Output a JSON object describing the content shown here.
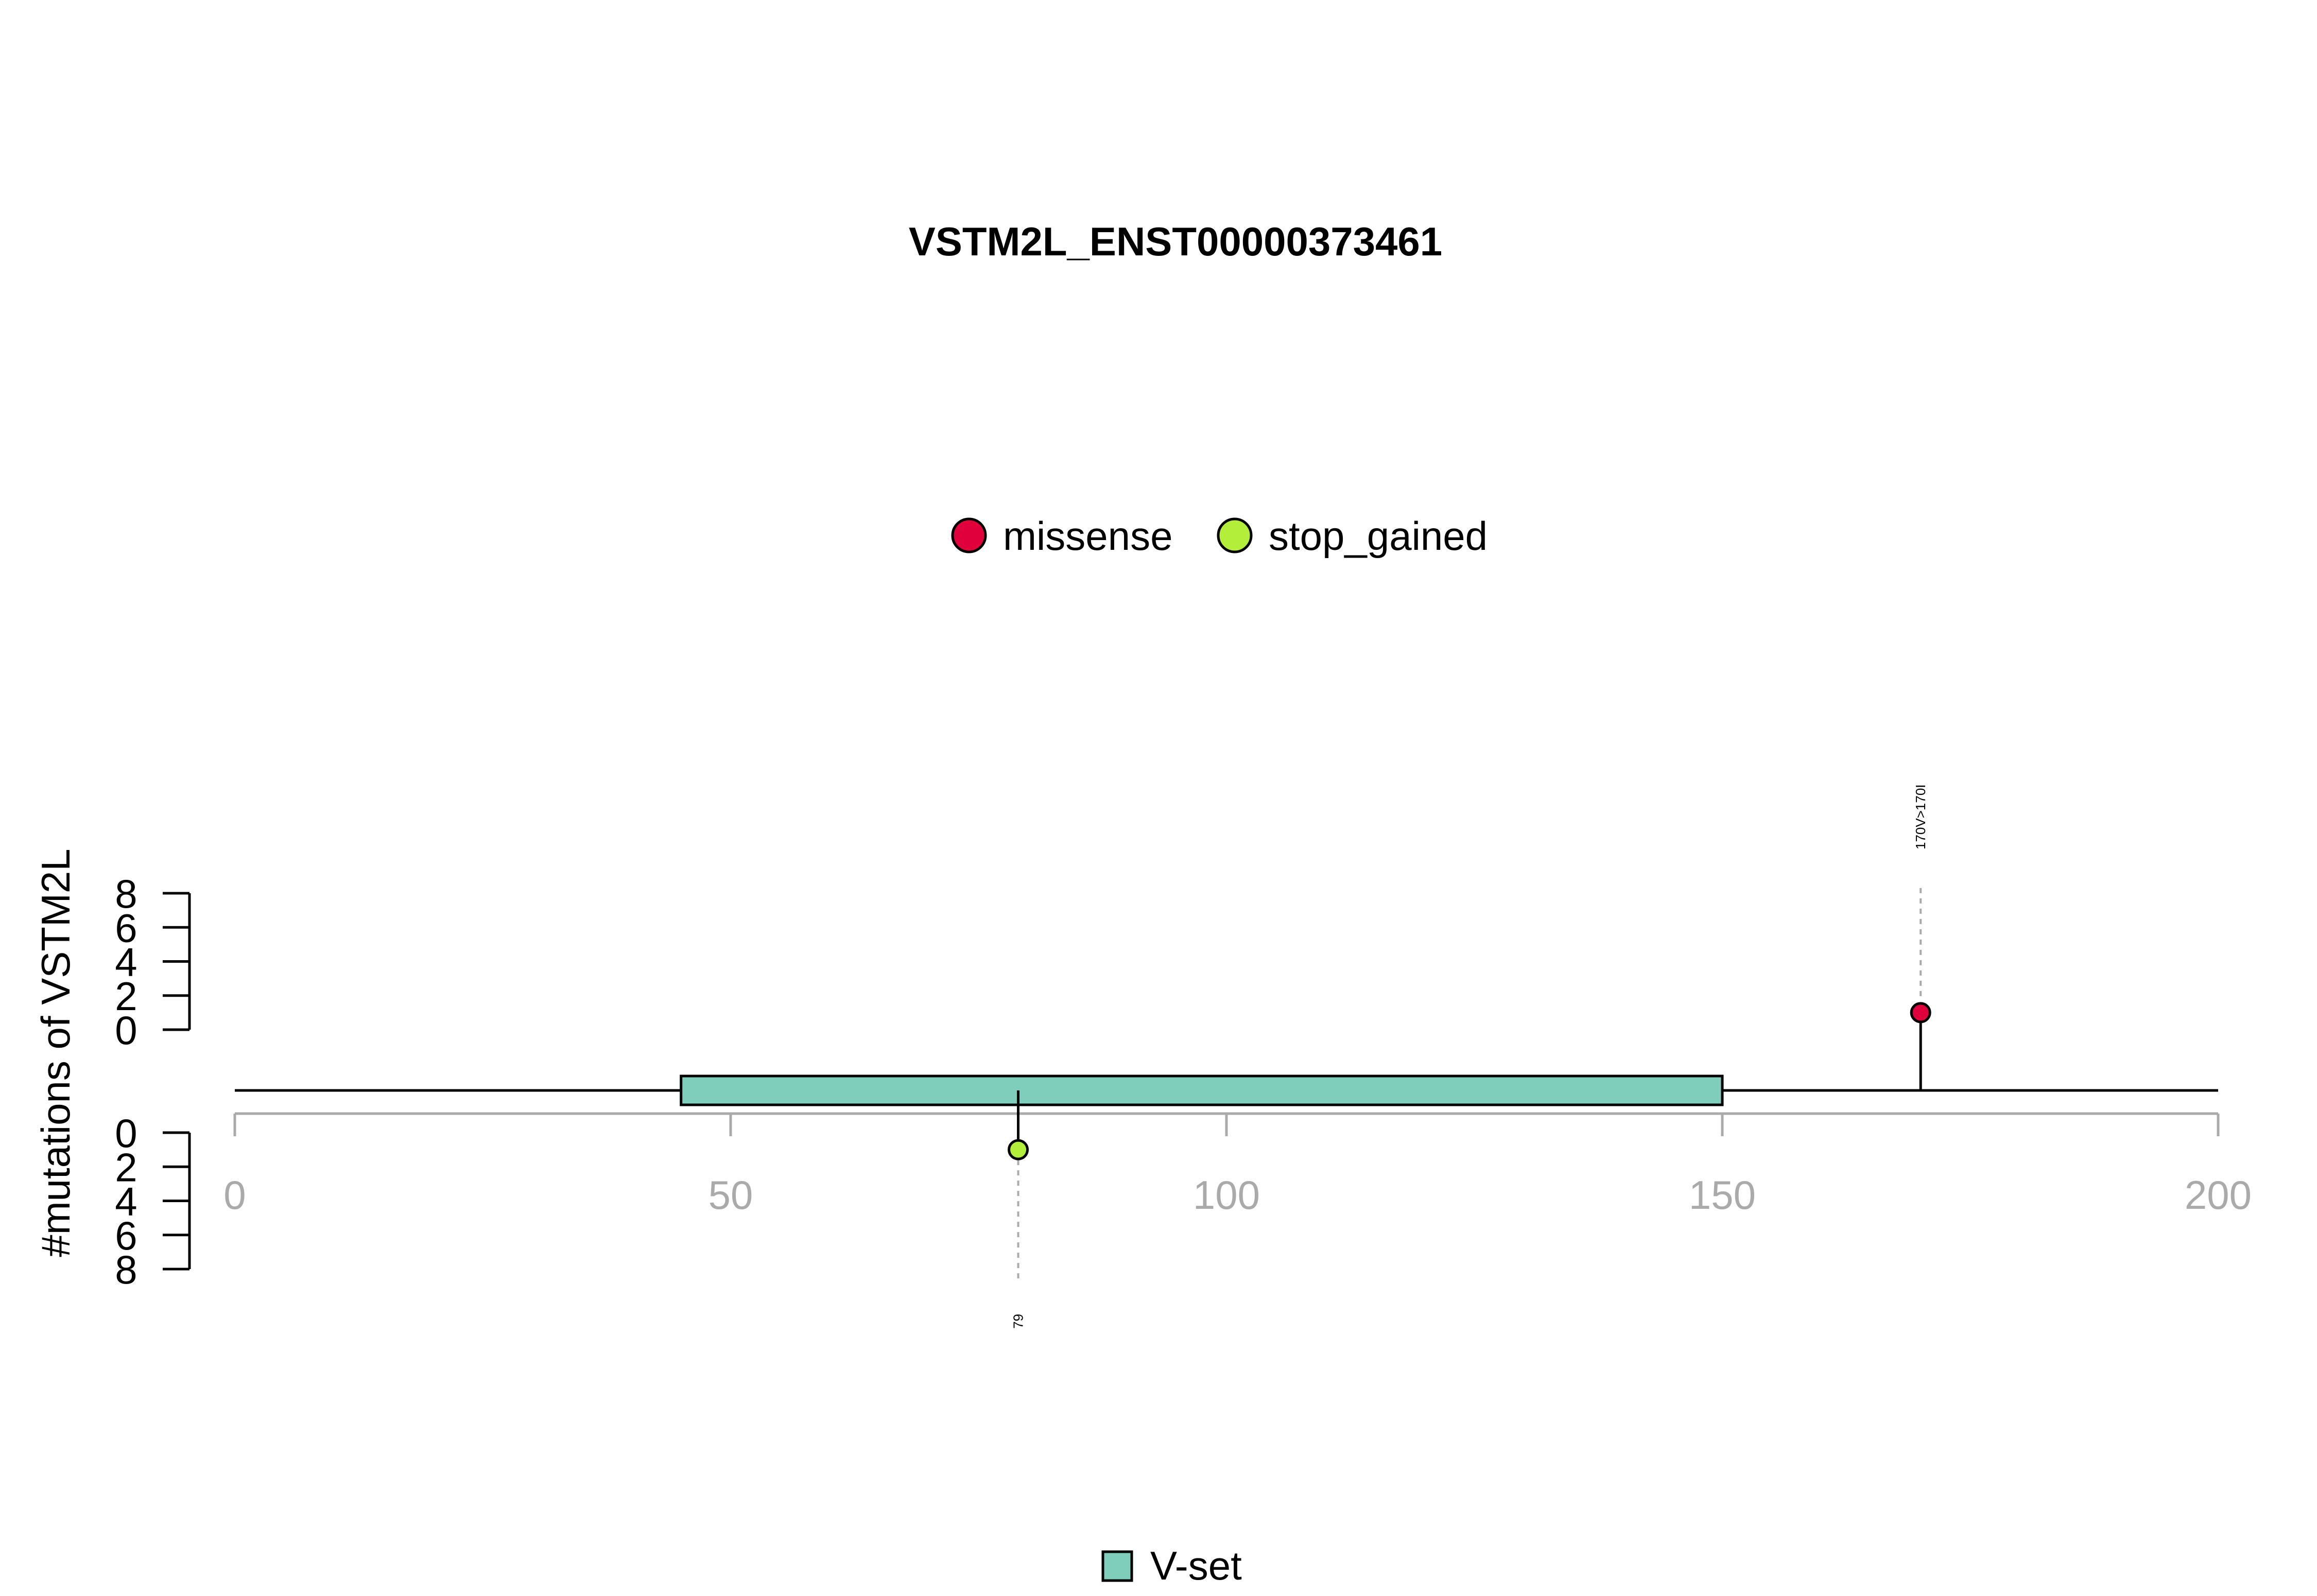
{
  "chart_data": {
    "type": "lollipop",
    "title": "VSTM2L_ENST00000373461",
    "ylabel": "#mutations of VSTM2L",
    "xlim": [
      0,
      200
    ],
    "xticks": [
      0,
      50,
      100,
      150,
      200
    ],
    "ylim_top": [
      0,
      8
    ],
    "ylim_bottom": [
      0,
      8
    ],
    "yticks": [
      0,
      2,
      4,
      6,
      8
    ],
    "mutation_legend": [
      {
        "name": "missense",
        "color": "#E0003C"
      },
      {
        "name": "stop_gained",
        "color": "#B3EE3A"
      }
    ],
    "mutations": [
      {
        "position": 170,
        "count": 1,
        "type": "missense",
        "side": "top",
        "label": "170V>170I",
        "color": "#E0003C"
      },
      {
        "position": 79,
        "count": 1,
        "type": "stop_gained",
        "side": "bottom",
        "label": "79",
        "color": "#B3EE3A"
      }
    ],
    "domains": [
      {
        "name": "V-set",
        "start": 45,
        "end": 150,
        "color": "#7FCDBB"
      }
    ],
    "domain_legend": [
      {
        "name": "V-set",
        "color": "#7FCDBB"
      }
    ]
  }
}
